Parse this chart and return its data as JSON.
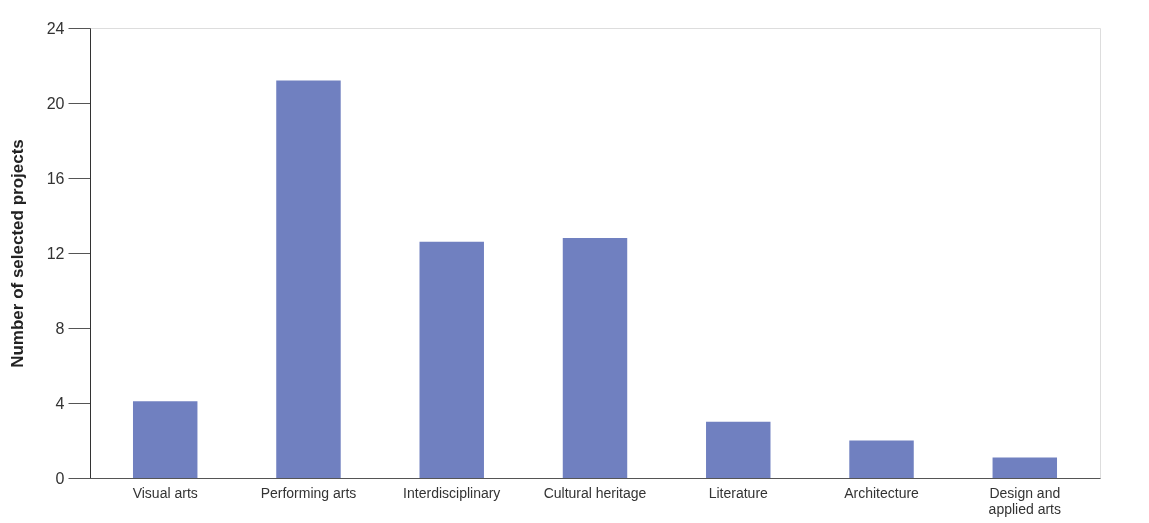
{
  "chart_data": {
    "type": "bar",
    "ylabel": "Number of selected projects",
    "categories": [
      "Visual arts",
      "Performing arts",
      "Interdisciplinary",
      "Cultural heritage",
      "Literature",
      "Architecture",
      "Design and applied arts"
    ],
    "values": [
      4.1,
      21.2,
      12.6,
      12.8,
      3.0,
      2.0,
      1.1
    ],
    "color": "#7080c0",
    "ylim": [
      0,
      24
    ],
    "yticks": [
      0,
      4,
      8,
      12,
      16,
      20,
      24
    ],
    "grid": false
  }
}
